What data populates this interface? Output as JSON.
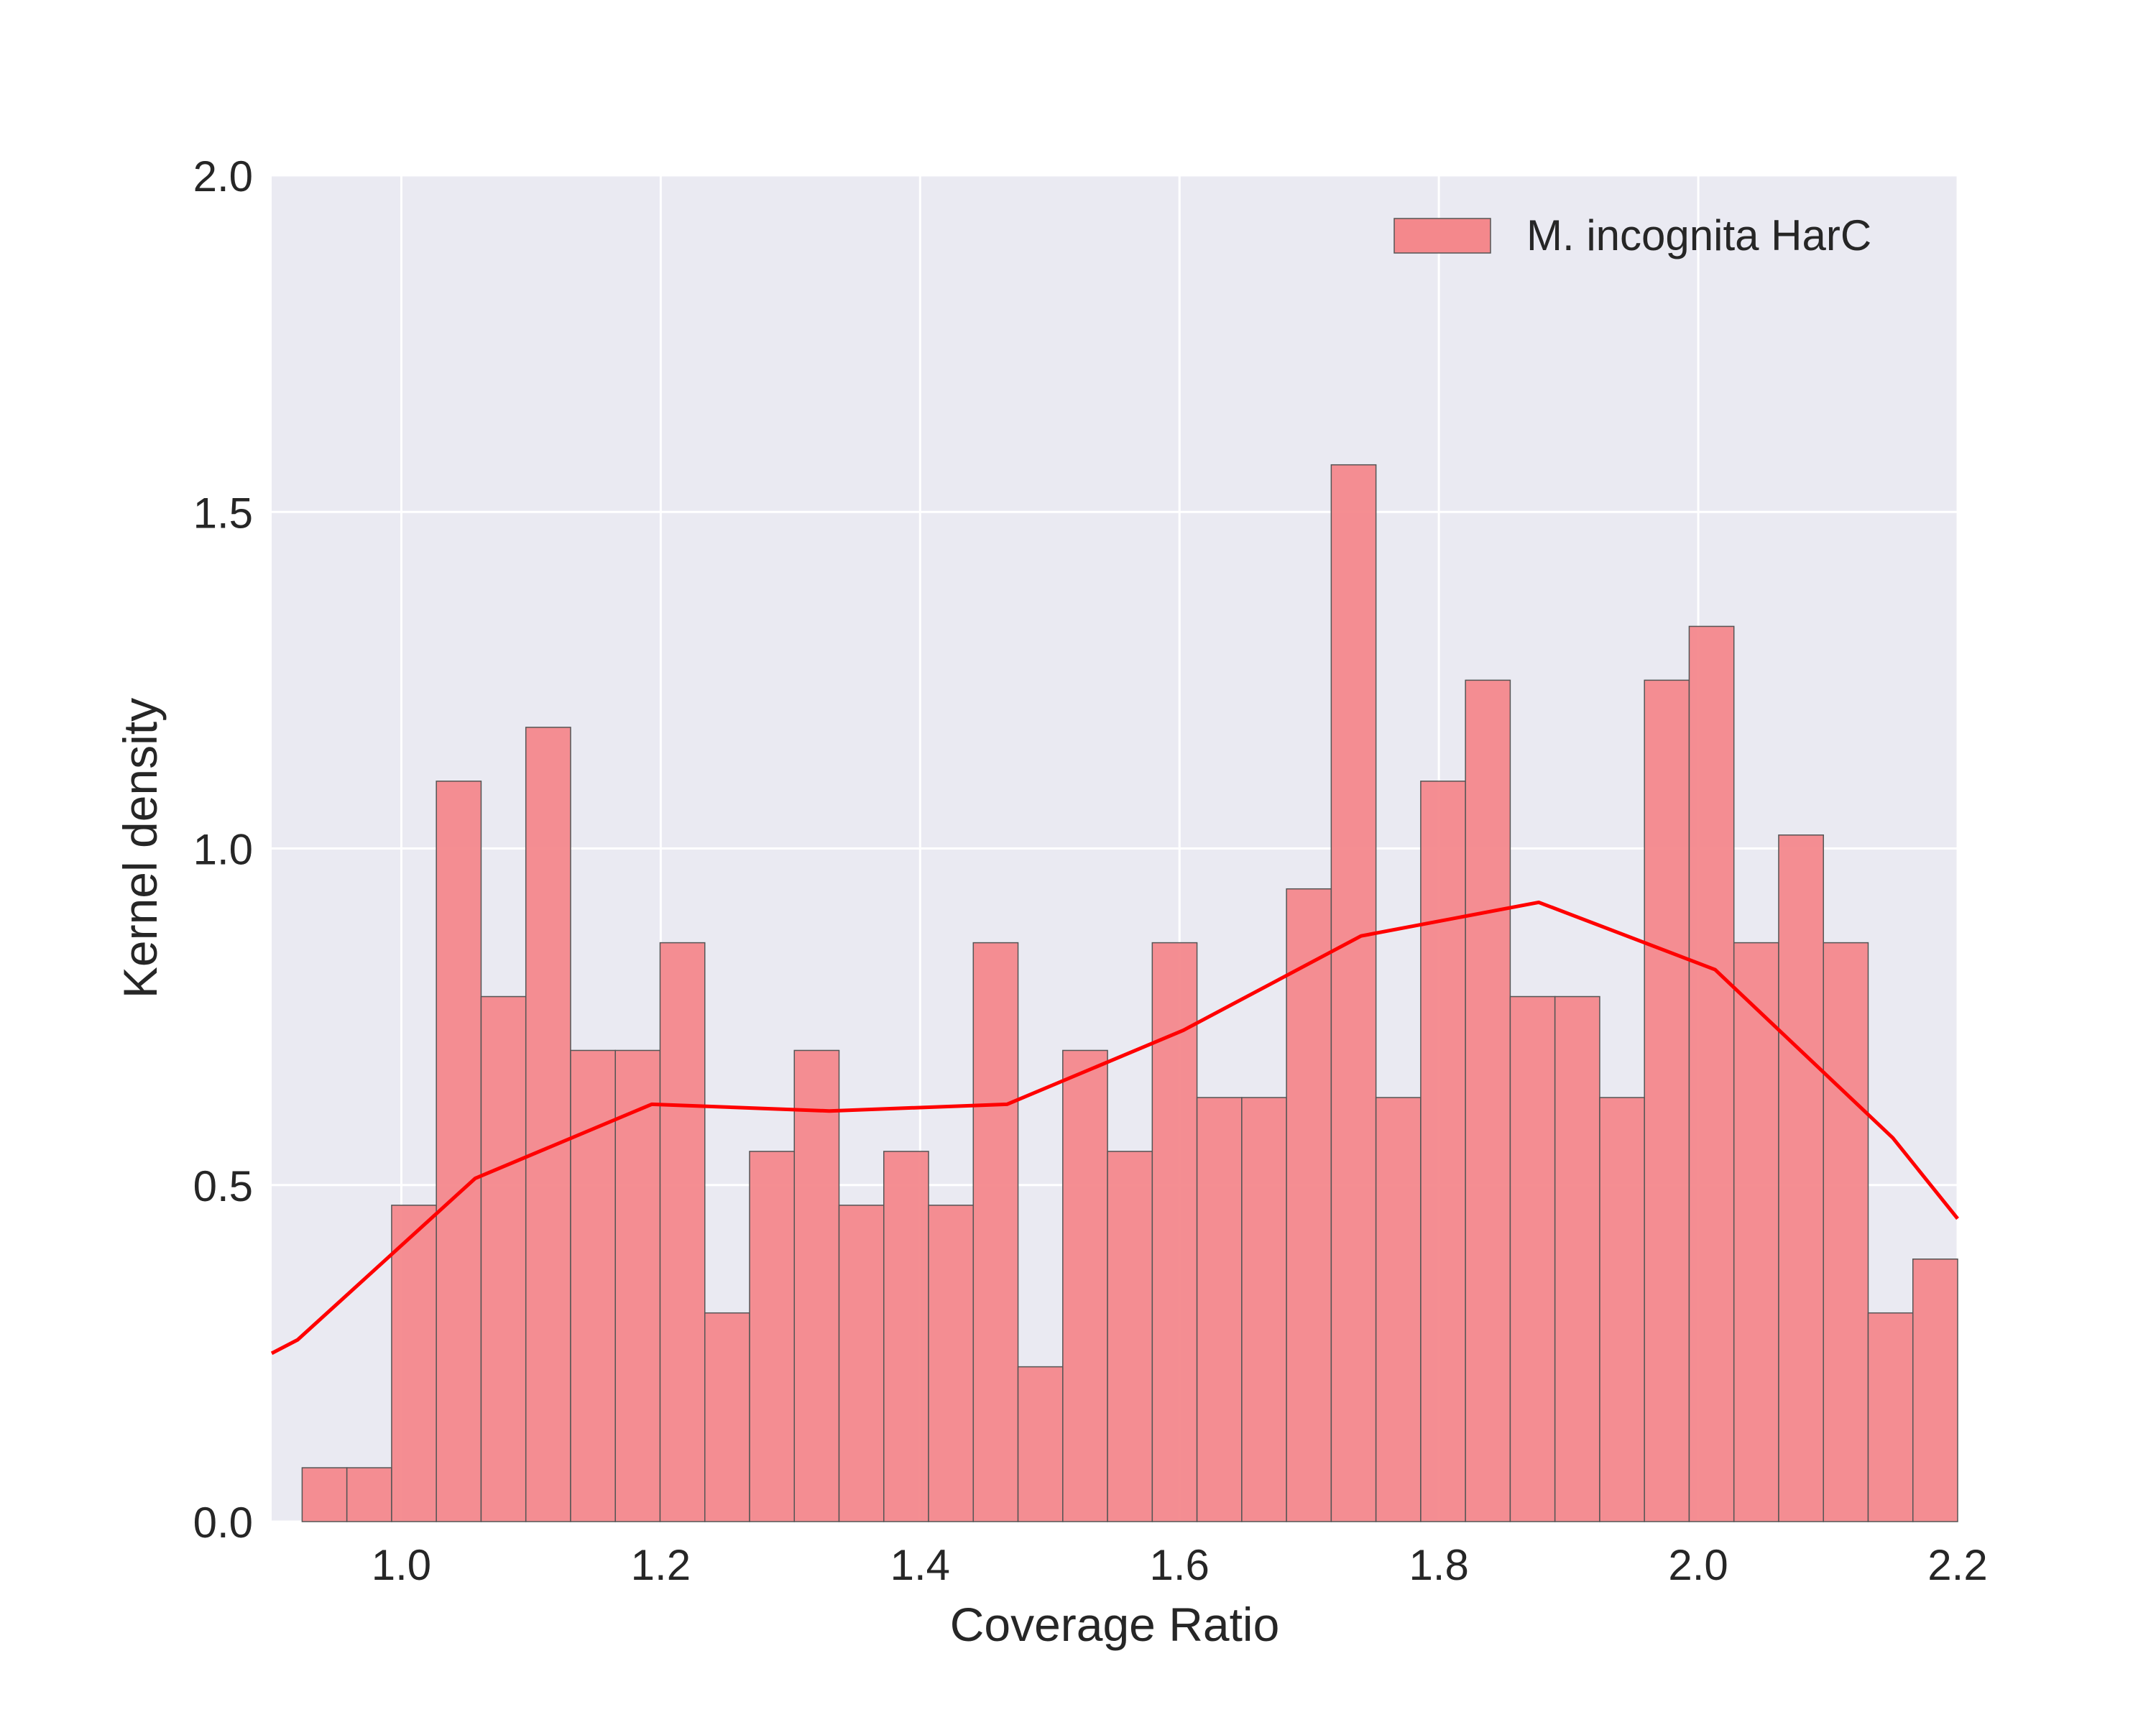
{
  "chart_data": {
    "type": "bar",
    "title": "",
    "xlabel": "Coverage Ratio",
    "ylabel": "Kernel density",
    "xlim": [
      0.9,
      2.2
    ],
    "ylim": [
      0.0,
      2.0
    ],
    "xticks": [
      "1.0",
      "1.2",
      "1.4",
      "1.6",
      "1.8",
      "2.0",
      "2.2"
    ],
    "yticks": [
      "0.0",
      "0.5",
      "1.0",
      "1.5",
      "2.0"
    ],
    "grid": true,
    "legend_position": "top-right",
    "bins": {
      "start": 0.9235,
      "width": 0.0345,
      "values": [
        0.08,
        0.08,
        0.47,
        1.1,
        0.78,
        1.18,
        0.7,
        0.7,
        0.86,
        0.31,
        0.55,
        0.7,
        0.47,
        0.55,
        0.47,
        0.86,
        0.23,
        0.7,
        0.55,
        0.86,
        0.63,
        0.63,
        0.94,
        1.57,
        0.63,
        1.1,
        1.25,
        0.78,
        0.78,
        0.63,
        1.25,
        1.33,
        0.86,
        1.02,
        0.86,
        0.31,
        0.39
      ]
    },
    "series": [
      {
        "name": "M. incognita HarC",
        "kind": "histogram",
        "color": "#f4888c"
      },
      {
        "kind": "line",
        "color": "#ff0000",
        "x": [
          0.9,
          0.92,
          1.057,
          1.193,
          1.33,
          1.467,
          1.603,
          1.74,
          1.877,
          2.013,
          2.15,
          2.2
        ],
        "y": [
          0.25,
          0.27,
          0.51,
          0.62,
          0.61,
          0.62,
          0.73,
          0.87,
          0.92,
          0.82,
          0.57,
          0.45
        ]
      }
    ]
  }
}
